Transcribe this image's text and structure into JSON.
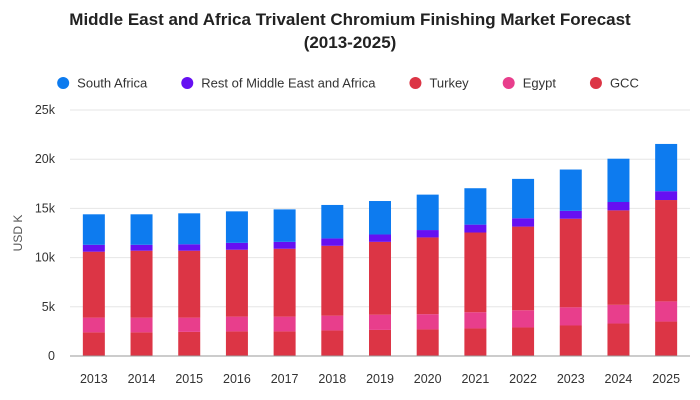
{
  "chart_data": {
    "type": "bar",
    "stacked": true,
    "title_line1": "Middle East and Africa Trivalent Chromium Finishing Market Forecast",
    "title_line2": "(2013-2025)",
    "ylabel": "USD K",
    "xlabel": "",
    "ylim": [
      0,
      25000
    ],
    "yticks": [
      0,
      5000,
      10000,
      15000,
      20000,
      25000
    ],
    "ytick_labels": [
      "0",
      "5k",
      "10k",
      "15k",
      "20k",
      "25k"
    ],
    "grid": true,
    "legend_position": "top",
    "categories": [
      "2013",
      "2014",
      "2015",
      "2016",
      "2017",
      "2018",
      "2019",
      "2020",
      "2021",
      "2022",
      "2023",
      "2024",
      "2025"
    ],
    "series": [
      {
        "name": "GCC",
        "color": "#dc3545",
        "values": [
          2400,
          2400,
          2450,
          2500,
          2500,
          2600,
          2650,
          2700,
          2800,
          2900,
          3100,
          3300,
          3500
        ]
      },
      {
        "name": "Egypt",
        "color": "#e83e8c",
        "values": [
          1500,
          1500,
          1450,
          1500,
          1500,
          1500,
          1550,
          1550,
          1650,
          1750,
          1850,
          1900,
          2050
        ]
      },
      {
        "name": "Turkey",
        "color": "#dc3545",
        "values": [
          6700,
          6800,
          6800,
          6800,
          6900,
          7100,
          7400,
          7800,
          8100,
          8500,
          9000,
          9600,
          10300
        ]
      },
      {
        "name": "Rest of Middle East and Africa",
        "color": "#6610f2",
        "values": [
          700,
          600,
          650,
          700,
          700,
          750,
          750,
          750,
          800,
          850,
          800,
          850,
          900
        ]
      },
      {
        "name": "South Africa",
        "color": "#0d7bef",
        "values": [
          3100,
          3100,
          3150,
          3200,
          3300,
          3400,
          3400,
          3600,
          3700,
          4000,
          4200,
          4400,
          4800
        ]
      }
    ],
    "legend_order": [
      "South Africa",
      "Rest of Middle East and Africa",
      "Turkey",
      "Egypt",
      "GCC"
    ]
  }
}
